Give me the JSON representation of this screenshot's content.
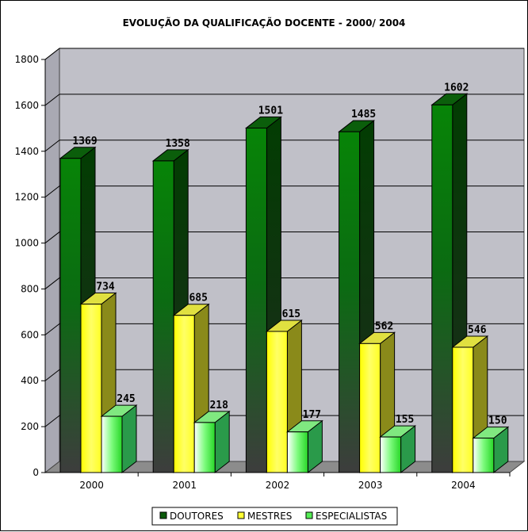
{
  "chart_data": {
    "type": "bar",
    "title": "EVOLUÇÃO DA QUALIFICAÇÃO DOCENTE - 2000/ 2004",
    "categories": [
      "2000",
      "2001",
      "2002",
      "2003",
      "2004"
    ],
    "series": [
      {
        "name": "DOUTORES",
        "values": [
          1369,
          1358,
          1501,
          1485,
          1602
        ],
        "color": "#0a7d0a"
      },
      {
        "name": "MESTRES",
        "values": [
          734,
          685,
          615,
          562,
          546
        ],
        "color": "#ffff1a"
      },
      {
        "name": "ESPECIALISTAS",
        "values": [
          245,
          218,
          177,
          155,
          150
        ],
        "color": "#4cf04c"
      }
    ],
    "ylim": [
      0,
      1800
    ],
    "yticks": [
      "0",
      "200",
      "400",
      "600",
      "800",
      "1000",
      "1200",
      "1400",
      "1600",
      "1800"
    ],
    "grid": true,
    "legend_position": "bottom",
    "style": "3d-clustered-column",
    "wall_color": "#c0c0c8",
    "floor_color": "#8c8c8c"
  }
}
